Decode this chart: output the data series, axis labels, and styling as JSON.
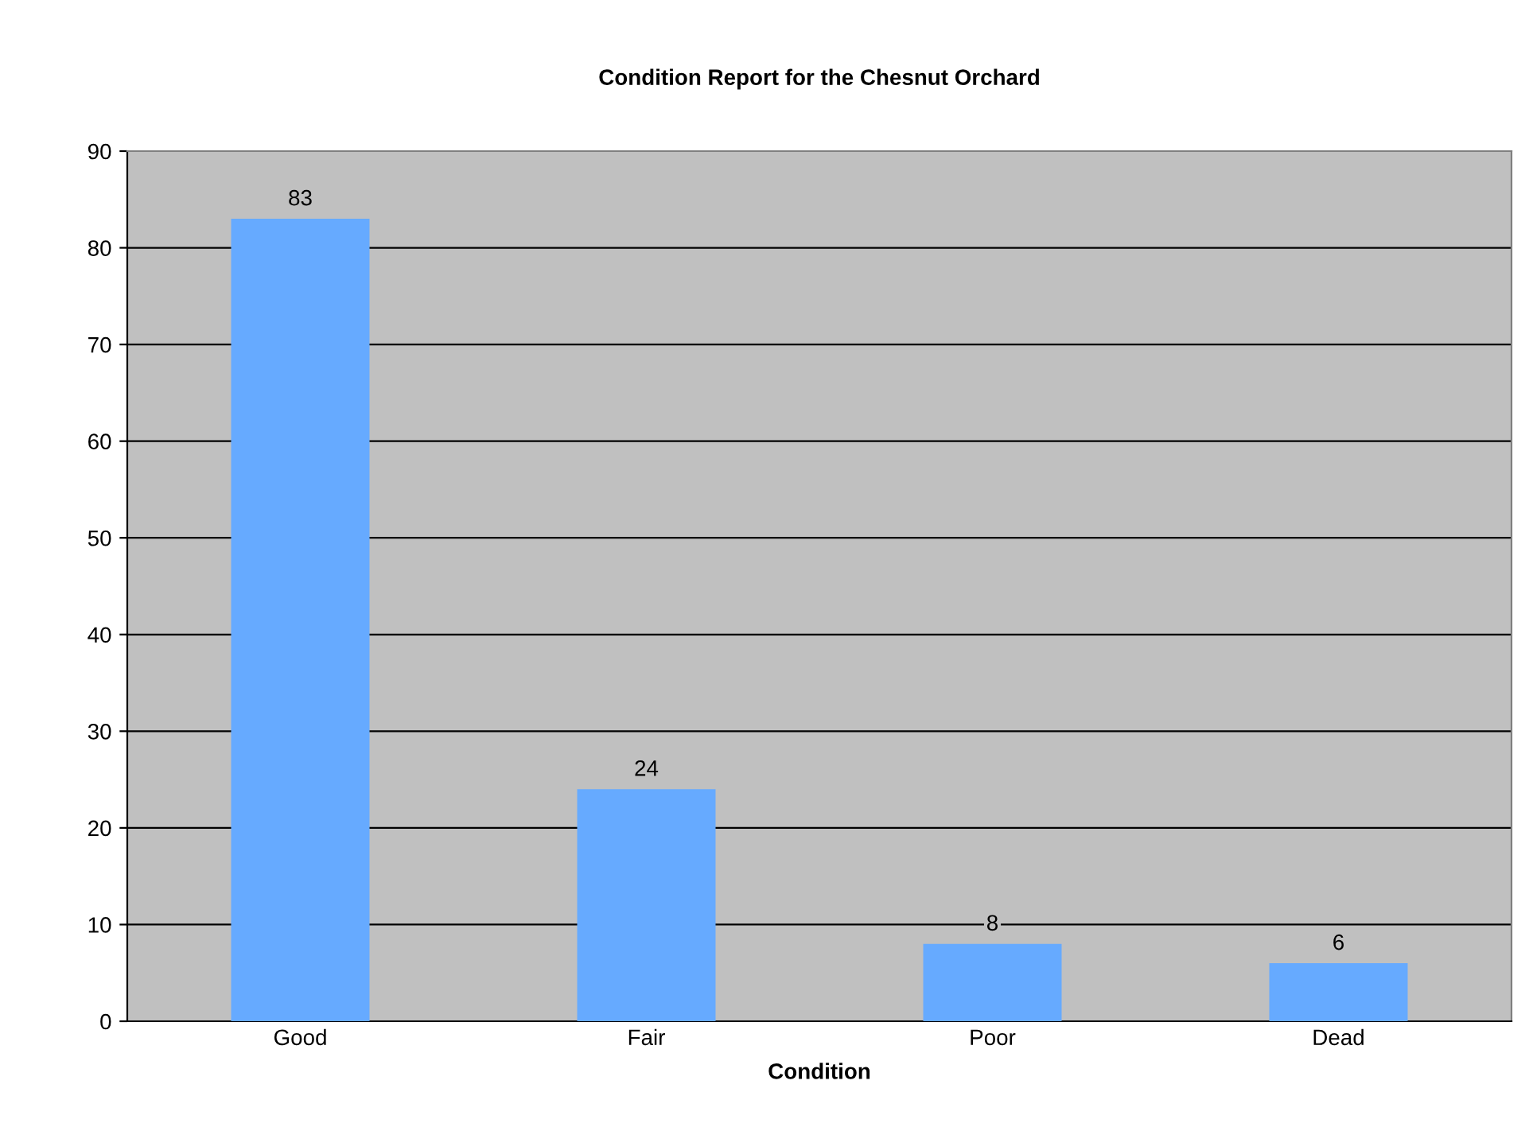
{
  "chart_data": {
    "type": "bar",
    "title": "Condition Report for the Chesnut Orchard",
    "xlabel": "Condition",
    "categories": [
      "Good",
      "Fair",
      "Poor",
      "Dead"
    ],
    "values": [
      83,
      24,
      8,
      6
    ],
    "color": "#66aaff",
    "ylim": [
      0,
      90
    ],
    "yticks": [
      0,
      10,
      20,
      30,
      40,
      50,
      60,
      70,
      80,
      90
    ],
    "grid": "y",
    "data_labels": true,
    "legend": false
  }
}
